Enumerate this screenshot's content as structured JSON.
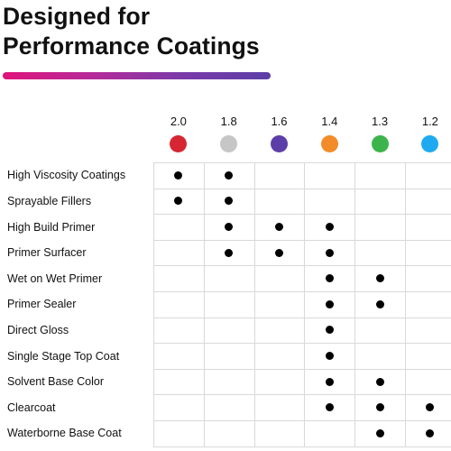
{
  "header": {
    "title_line1": "Designed for",
    "title_line2": "Performance Coatings",
    "bar_gradient": [
      "#e0147a",
      "#b62a9a",
      "#7a3aa8",
      "#5c3ea8"
    ]
  },
  "columns": [
    {
      "label": "2.0",
      "color": "#d62633"
    },
    {
      "label": "1.8",
      "color": "#c6c6c6"
    },
    {
      "label": "1.6",
      "color": "#5c3ea8"
    },
    {
      "label": "1.4",
      "color": "#f28c28"
    },
    {
      "label": "1.3",
      "color": "#3cb44b"
    },
    {
      "label": "1.2",
      "color": "#1eaaf0"
    }
  ],
  "rows": [
    {
      "label": "High Viscosity Coatings",
      "marks": [
        true,
        true,
        false,
        false,
        false,
        false
      ]
    },
    {
      "label": "Sprayable Fillers",
      "marks": [
        true,
        true,
        false,
        false,
        false,
        false
      ]
    },
    {
      "label": "High Build Primer",
      "marks": [
        false,
        true,
        true,
        true,
        false,
        false
      ]
    },
    {
      "label": "Primer Surfacer",
      "marks": [
        false,
        true,
        true,
        true,
        false,
        false
      ]
    },
    {
      "label": "Wet on Wet Primer",
      "marks": [
        false,
        false,
        false,
        true,
        true,
        false
      ]
    },
    {
      "label": "Primer Sealer",
      "marks": [
        false,
        false,
        false,
        true,
        true,
        false
      ]
    },
    {
      "label": "Direct Gloss",
      "marks": [
        false,
        false,
        false,
        true,
        false,
        false
      ]
    },
    {
      "label": "Single Stage Top Coat",
      "marks": [
        false,
        false,
        false,
        true,
        false,
        false
      ]
    },
    {
      "label": "Solvent Base Color",
      "marks": [
        false,
        false,
        false,
        true,
        true,
        false
      ]
    },
    {
      "label": "Clearcoat",
      "marks": [
        false,
        false,
        false,
        true,
        true,
        true
      ]
    },
    {
      "label": "Waterborne Base Coat",
      "marks": [
        false,
        false,
        false,
        false,
        true,
        true
      ]
    }
  ]
}
